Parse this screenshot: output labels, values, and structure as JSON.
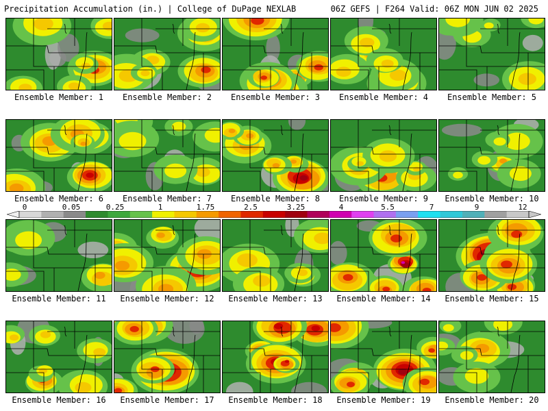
{
  "header": {
    "title_left": "Precipitation Accumulation (in.) | College of DuPage NEXLAB",
    "title_right": "06Z GEFS | F264 Valid: 06Z MON JUN 02 2025"
  },
  "members": [
    {
      "label": "Ensemble Member: 1",
      "intensity": 0.55,
      "hot": [
        0.85,
        0.7
      ]
    },
    {
      "label": "Ensemble Member: 2",
      "intensity": 0.5,
      "hot": [
        0.85,
        0.75
      ]
    },
    {
      "label": "Ensemble Member: 3",
      "intensity": 0.75,
      "hot": [
        0.7,
        0.85
      ]
    },
    {
      "label": "Ensemble Member: 4",
      "intensity": 0.55,
      "hot": [
        0.4,
        0.5
      ]
    },
    {
      "label": "Ensemble Member: 5",
      "intensity": 0.35,
      "hot": [
        0.85,
        0.85
      ]
    },
    {
      "label": "Ensemble Member: 6",
      "intensity": 0.6,
      "hot": [
        0.8,
        0.8
      ]
    },
    {
      "label": "Ensemble Member: 7",
      "intensity": 0.35,
      "hot": [
        0.85,
        0.75
      ]
    },
    {
      "label": "Ensemble Member: 8",
      "intensity": 0.7,
      "hot": [
        0.75,
        0.8
      ]
    },
    {
      "label": "Ensemble Member: 9",
      "intensity": 0.55,
      "hot": [
        0.5,
        0.8
      ]
    },
    {
      "label": "Ensemble Member: 10",
      "intensity": 0.45,
      "hot": [
        0.6,
        0.6
      ]
    },
    {
      "label": "Ensemble Member: 11",
      "intensity": 0.45,
      "hot": [
        0.9,
        0.8
      ]
    },
    {
      "label": "Ensemble Member: 12",
      "intensity": 0.6,
      "hot": [
        0.8,
        0.7
      ]
    },
    {
      "label": "Ensemble Member: 13",
      "intensity": 0.5,
      "hot": [
        0.75,
        0.8
      ]
    },
    {
      "label": "Ensemble Member: 14",
      "intensity": 0.8,
      "hot": [
        0.7,
        0.6
      ]
    },
    {
      "label": "Ensemble Member: 15",
      "intensity": 0.8,
      "hot": [
        0.5,
        0.5
      ]
    },
    {
      "label": "Ensemble Member: 16",
      "intensity": 0.55,
      "hot": [
        0.35,
        0.85
      ]
    },
    {
      "label": "Ensemble Member: 17",
      "intensity": 0.75,
      "hot": [
        0.5,
        0.7
      ]
    },
    {
      "label": "Ensemble Member: 18",
      "intensity": 0.85,
      "hot": [
        0.5,
        0.6
      ]
    },
    {
      "label": "Ensemble Member: 19",
      "intensity": 0.75,
      "hot": [
        0.7,
        0.7
      ]
    },
    {
      "label": "Ensemble Member: 20",
      "intensity": 0.45,
      "hot": [
        0.4,
        0.4
      ]
    }
  ],
  "colorbar": {
    "ticks": [
      "0",
      "0.05",
      "0.25",
      "1",
      "1.75",
      "2.5",
      "3.25",
      "4",
      "5.5",
      "7",
      "9",
      "12"
    ],
    "colors": [
      "#d8d8d8",
      "#b0b0b0",
      "#8a8a8a",
      "#2e8b2e",
      "#3da83d",
      "#66c24a",
      "#f0f000",
      "#f5c800",
      "#f59a00",
      "#f06400",
      "#e02800",
      "#c80000",
      "#a00010",
      "#b0005a",
      "#d000b0",
      "#e040f0",
      "#b070f0",
      "#7aa0f0",
      "#20e0f0",
      "#30c8d8",
      "#50b0b8",
      "#a0a0a0",
      "#c8c8c8"
    ]
  }
}
